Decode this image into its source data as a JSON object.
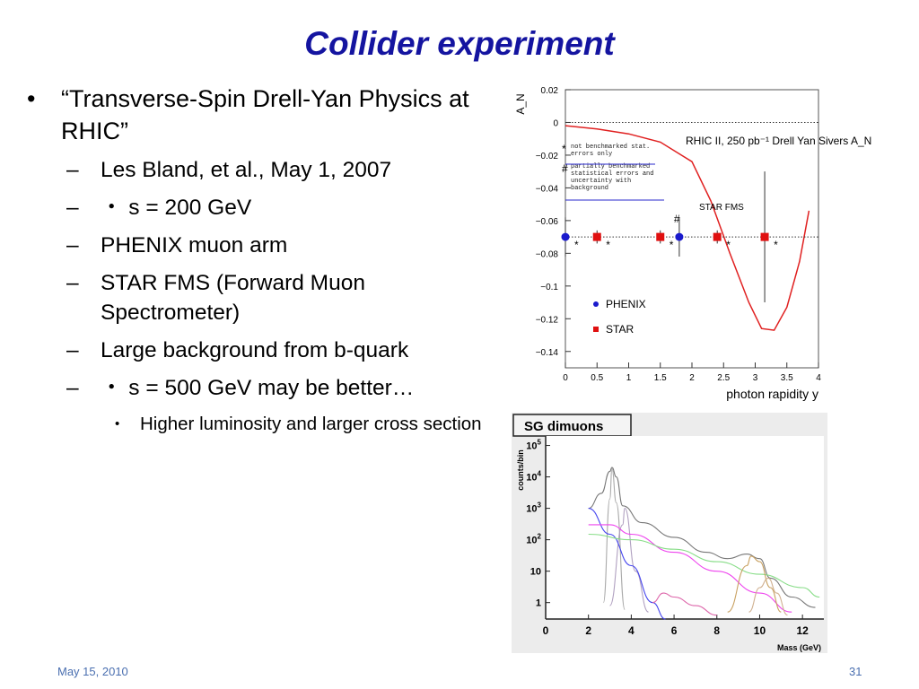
{
  "slide": {
    "title": "Collider experiment",
    "bullets": [
      {
        "level": 1,
        "marker": "•",
        "text": "“Transverse-Spin Drell-Yan Physics at RHIC”"
      },
      {
        "level": 2,
        "marker": "–",
        "text": "Les Bland, et al., May 1, 2007"
      },
      {
        "level": 2,
        "marker": "–",
        "text": "・ s = 200 GeV"
      },
      {
        "level": 2,
        "marker": "–",
        "text": "PHENIX muon arm"
      },
      {
        "level": 2,
        "marker": "–",
        "text": "STAR FMS (Forward Muon Spectrometer)"
      },
      {
        "level": 2,
        "marker": "–",
        "text": "Large background from b-quark"
      },
      {
        "level": 2,
        "marker": "–",
        "text": "・ s = 500 GeV may be better…"
      },
      {
        "level": 3,
        "marker": "•",
        "text": "Higher luminosity and larger cross section"
      }
    ],
    "footer": {
      "date": "May 15, 2010",
      "page": "31"
    },
    "colors": {
      "title": "#1414a0",
      "footer": "#4a6fb0"
    }
  },
  "chart_data": [
    {
      "type": "scatter",
      "ylabel": "A_N",
      "xlabel": "photon rapidity y",
      "xlim": [
        0,
        4
      ],
      "ylim": [
        -0.15,
        0.02
      ],
      "x_ticks": [
        "0",
        "0.5",
        "1",
        "1.5",
        "2",
        "2.5",
        "3",
        "3.5",
        "4"
      ],
      "y_ticks": [
        "0.02",
        "0",
        "−0.02",
        "−0.04",
        "−0.06",
        "−0.08",
        "−0.1",
        "−0.12",
        "−0.14"
      ],
      "annotation": "RHIC II, 250 pb⁻¹ Drell Yan Sivers A_N",
      "legend_notes": [
        {
          "symbol": "*",
          "text": "not benchmarked stat. errors only"
        },
        {
          "symbol": "#",
          "text": "partially benchmarked statistical errors and uncertainty with background"
        }
      ],
      "curve_label": "STAR FMS",
      "legend": [
        {
          "name": "PHENIX",
          "color": "#1a1acc",
          "marker": "circle"
        },
        {
          "name": "STAR",
          "color": "#e01010",
          "marker": "square"
        }
      ],
      "series": [
        {
          "name": "PHENIX",
          "points": [
            {
              "x": 0.0,
              "y": -0.07,
              "yerr": 0.012,
              "tag": "*"
            },
            {
              "x": 1.8,
              "y": -0.07,
              "yerr": 0.012,
              "tag": "#"
            }
          ]
        },
        {
          "name": "STAR",
          "points": [
            {
              "x": 0.5,
              "y": -0.07,
              "yerr": 0.004,
              "tag": "*"
            },
            {
              "x": 1.5,
              "y": -0.07,
              "yerr": 0.004,
              "tag": "*"
            },
            {
              "x": 2.4,
              "y": -0.07,
              "yerr": 0.004,
              "tag": "*"
            },
            {
              "x": 3.15,
              "y": -0.07,
              "yerr": 0.04,
              "tag": "*"
            }
          ]
        },
        {
          "name": "Sivers curve",
          "color": "#e02020",
          "x": [
            0,
            0.5,
            1,
            1.5,
            2,
            2.3,
            2.6,
            2.9,
            3.1,
            3.3,
            3.5,
            3.7,
            3.85
          ],
          "values": [
            -0.002,
            -0.004,
            -0.007,
            -0.012,
            -0.024,
            -0.048,
            -0.08,
            -0.11,
            -0.126,
            -0.127,
            -0.113,
            -0.085,
            -0.054
          ]
        },
        {
          "name": "reference",
          "style": "dotted",
          "x": [
            0,
            4
          ],
          "values": [
            -0.07,
            -0.07
          ]
        },
        {
          "name": "zero",
          "style": "dotted",
          "x": [
            0,
            4
          ],
          "values": [
            0,
            0
          ]
        }
      ]
    },
    {
      "type": "line",
      "title": "SG dimuons",
      "ylabel": "counts/bin",
      "xlabel": "Mass (GeV)",
      "xlim": [
        0,
        13
      ],
      "log_y": true,
      "ylim": [
        0.3,
        200000
      ],
      "x_ticks": [
        "0",
        "2",
        "4",
        "6",
        "8",
        "10",
        "12"
      ],
      "y_ticks": [
        {
          "base": "10",
          "exp": "5"
        },
        {
          "base": "10",
          "exp": "4"
        },
        {
          "base": "10",
          "exp": "3"
        },
        {
          "base": "10",
          "exp": "2"
        },
        {
          "base": "10",
          "exp": ""
        },
        {
          "base": "1",
          "exp": ""
        }
      ],
      "series": [
        {
          "name": "total",
          "color": "#777777",
          "x": [
            2,
            2.6,
            3.0,
            3.1,
            3.3,
            3.6,
            4.5,
            6,
            7.5,
            8.5,
            9.4,
            10.0,
            10.5,
            11.5,
            12.6
          ],
          "values": [
            1000,
            3000,
            15000,
            20000,
            10000,
            1200,
            350,
            120,
            40,
            25,
            35,
            25,
            6,
            1.5,
            0.7
          ]
        },
        {
          "name": "J/psi",
          "color": "#aaaaaa",
          "x": [
            2.7,
            3.0,
            3.1,
            3.3,
            3.7
          ],
          "values": [
            1,
            2000,
            18000,
            1500,
            0.6
          ]
        },
        {
          "name": "psi'",
          "color": "#b0a0c0",
          "x": [
            3.0,
            3.6,
            3.7,
            4.2,
            4.8
          ],
          "values": [
            0.8,
            300,
            1000,
            10,
            0.5
          ]
        },
        {
          "name": "blue",
          "color": "#4444ee",
          "x": [
            2,
            3,
            4,
            5,
            5.6
          ],
          "values": [
            1000,
            150,
            15,
            1,
            0.3
          ]
        },
        {
          "name": "magenta",
          "color": "#ee44ee",
          "x": [
            2,
            3,
            4,
            6,
            8,
            10,
            11.5
          ],
          "values": [
            300,
            300,
            150,
            40,
            10,
            2,
            0.5
          ]
        },
        {
          "name": "green",
          "color": "#88dd88",
          "x": [
            2,
            4,
            6,
            8,
            10,
            12,
            12.8
          ],
          "values": [
            150,
            100,
            50,
            20,
            8,
            3,
            1.5
          ]
        },
        {
          "name": "Upsilon",
          "color": "#c8a060",
          "x": [
            8.5,
            9.4,
            9.6,
            10.0,
            10.5,
            11.0
          ],
          "values": [
            0.5,
            15,
            30,
            20,
            3,
            0.5
          ]
        },
        {
          "name": "Upsilon2",
          "color": "#d0b090",
          "x": [
            9.5,
            10.0,
            10.4,
            10.8,
            11.3
          ],
          "values": [
            0.5,
            3,
            6,
            2,
            0.4
          ]
        },
        {
          "name": "extra",
          "color": "#dd66aa",
          "x": [
            5,
            5.5,
            6,
            7,
            8
          ],
          "values": [
            1,
            2,
            1.5,
            0.8,
            0.4
          ]
        }
      ]
    }
  ]
}
